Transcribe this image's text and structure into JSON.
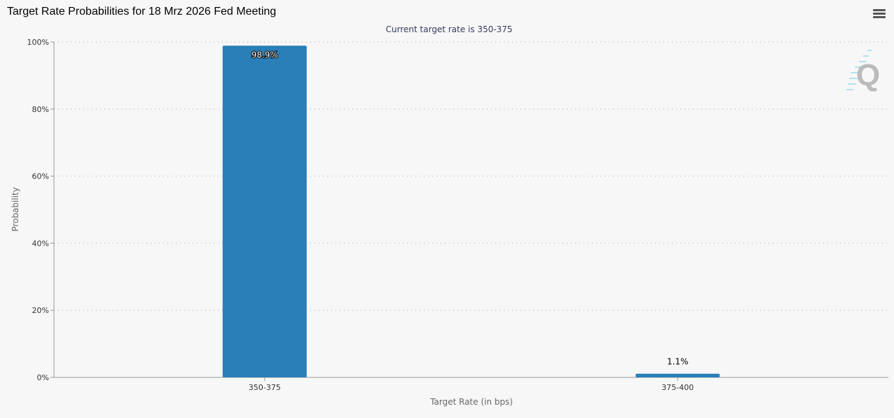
{
  "title": "Target Rate Probabilities for 18 Mrz 2026 Fed Meeting",
  "menu_icon": "hamburger-menu-icon",
  "logo_text": "Q",
  "chart_data": {
    "type": "bar",
    "subtitle": "Current target rate is 350-375",
    "categories": [
      "350-375",
      "375-400"
    ],
    "values": [
      98.9,
      1.1
    ],
    "data_labels": [
      "98.9%",
      "1.1%"
    ],
    "xlabel": "Target Rate (in bps)",
    "ylabel": "Probability",
    "ylim": [
      0,
      100
    ],
    "yticks": [
      "0%",
      "20%",
      "40%",
      "60%",
      "80%",
      "100%"
    ],
    "grid": true,
    "bar_color": "#2a7fb8"
  }
}
